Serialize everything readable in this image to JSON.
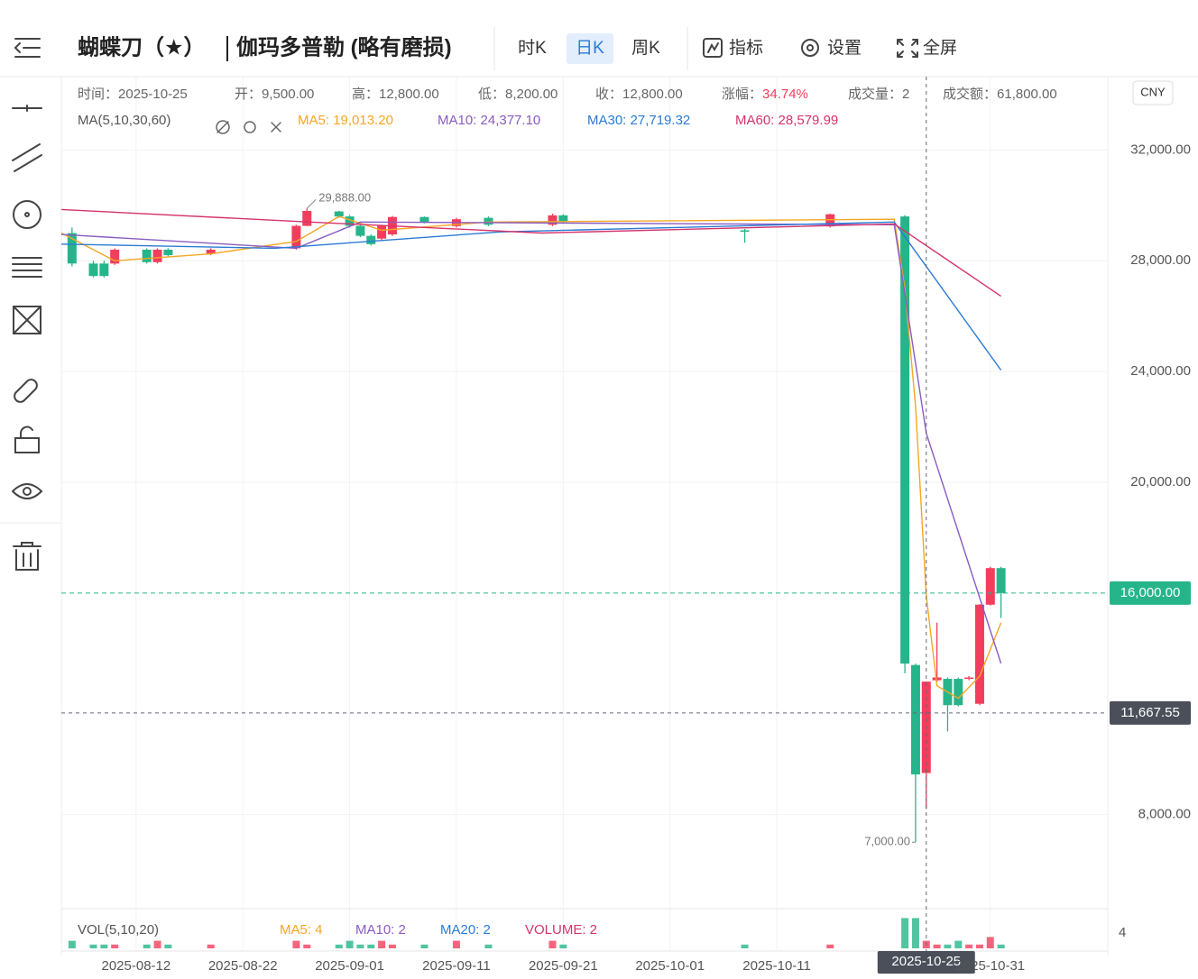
{
  "header": {
    "title": "蝴蝶刀（★）",
    "item_name": "伽玛多普勒 (略有磨损)",
    "period_tabs": [
      "时K",
      "日K",
      "周K"
    ],
    "active_tab": 1,
    "tools": [
      "指标",
      "设置",
      "全屏"
    ]
  },
  "chart_data": {
    "type": "candlestick",
    "currency": "CNY",
    "up_color": "#f23d5c",
    "down_color": "#26b58a",
    "info_bar": [
      {
        "label": "时间：",
        "value": "2025-10-25"
      },
      {
        "label": "开：",
        "value": "9,500.00"
      },
      {
        "label": "高：",
        "value": "12,800.00"
      },
      {
        "label": "低：",
        "value": "8,200.00"
      },
      {
        "label": "收：",
        "value": "12,800.00"
      },
      {
        "label": "涨幅：",
        "value": "34.74%"
      },
      {
        "label": "成交量：",
        "value": "2"
      },
      {
        "label": "成交额：",
        "value": "61,800.00"
      }
    ],
    "ma_title": "MA(5,10,30,60)",
    "xlim": [
      "2025-08-05",
      "2025-11-11"
    ],
    "xticks": [
      "2025-08-12",
      "2025-08-22",
      "2025-09-01",
      "2025-09-11",
      "2025-09-21",
      "2025-10-01",
      "2025-10-11",
      "2025-10-31"
    ],
    "ylim": [
      4600,
      34650
    ],
    "yticks": [
      {
        "value": 8000,
        "label": "8,000.00"
      },
      {
        "value": 20000,
        "label": "20,000.00"
      },
      {
        "value": 24000,
        "label": "24,000.00"
      },
      {
        "value": 28000,
        "label": "28,000.00"
      },
      {
        "value": 32000,
        "label": "32,000.00"
      }
    ],
    "grid": true,
    "x": [
      "2025-08-06",
      "2025-08-08",
      "2025-08-09",
      "2025-08-10",
      "2025-08-13",
      "2025-08-14",
      "2025-08-15",
      "2025-08-19",
      "2025-08-27",
      "2025-08-28",
      "2025-08-31",
      "2025-09-01",
      "2025-09-02",
      "2025-09-03",
      "2025-09-04",
      "2025-09-05",
      "2025-09-08",
      "2025-09-11",
      "2025-09-14",
      "2025-09-20",
      "2025-09-21",
      "2025-10-08",
      "2025-10-16",
      "2025-10-23",
      "2025-10-24",
      "2025-10-25",
      "2025-10-26",
      "2025-10-27",
      "2025-10-28",
      "2025-10-29",
      "2025-10-30",
      "2025-10-31",
      "2025-11-01"
    ],
    "open": [
      29000,
      27900,
      27900,
      27900,
      28400,
      27950,
      28400,
      28250,
      28450,
      29260,
      29780,
      29600,
      29260,
      28900,
      28800,
      28950,
      29580,
      29250,
      29550,
      29300,
      29640,
      29100,
      29240,
      29600,
      13400,
      9500,
      12850,
      12900,
      12900,
      12900,
      12000,
      15580,
      16900
    ],
    "high": [
      29200,
      28000,
      28000,
      28450,
      28450,
      28450,
      28450,
      28450,
      29300,
      29888,
      29800,
      29650,
      29300,
      28950,
      29300,
      29620,
      29600,
      29550,
      29600,
      29700,
      29680,
      29150,
      29700,
      29650,
      13450,
      12800,
      14930,
      12950,
      12950,
      13000,
      15600,
      16950,
      16950
    ],
    "low": [
      27800,
      27400,
      27400,
      27850,
      27900,
      27900,
      28150,
      28200,
      28400,
      29250,
      29550,
      29200,
      28850,
      28550,
      28750,
      28900,
      29350,
      29200,
      29250,
      29250,
      29350,
      28650,
      29200,
      13100,
      7000,
      8200,
      12800,
      11000,
      11900,
      12850,
      11950,
      15550,
      15100
    ],
    "close": [
      27900,
      27450,
      27450,
      28400,
      27950,
      28400,
      28200,
      28400,
      29260,
      29800,
      29600,
      29260,
      28900,
      28600,
      29260,
      29580,
      29400,
      29500,
      29300,
      29640,
      29400,
      29050,
      29680,
      13450,
      9450,
      12800,
      12950,
      11950,
      11950,
      12950,
      15580,
      16900,
      16000
    ],
    "volume": [
      2,
      1,
      1,
      1,
      1,
      2,
      1,
      1,
      2,
      1,
      1,
      2,
      1,
      1,
      2,
      1,
      1,
      2,
      1,
      2,
      1,
      1,
      1,
      8,
      8,
      2,
      1,
      1,
      2,
      1,
      1,
      3,
      1
    ],
    "series": [
      {
        "name": "MA5: 19,013.20",
        "color": "#f5a623",
        "x": [
          "2025-08-05",
          "2025-08-10",
          "2025-08-19",
          "2025-08-27",
          "2025-08-31",
          "2025-09-04",
          "2025-09-14",
          "2025-10-22",
          "2025-10-23",
          "2025-10-24",
          "2025-10-25",
          "2025-10-26",
          "2025-10-28",
          "2025-10-30",
          "2025-11-01"
        ],
        "values": [
          29000,
          28000,
          28250,
          28700,
          29600,
          29100,
          29400,
          29500,
          26980,
          22750,
          15900,
          12650,
          12200,
          13000,
          14930
        ]
      },
      {
        "name": "MA10: 24,377.10",
        "color": "#8a5cc2",
        "x": [
          "2025-08-05",
          "2025-08-27",
          "2025-09-02",
          "2025-10-22",
          "2025-10-25",
          "2025-11-01"
        ],
        "values": [
          28950,
          28450,
          29400,
          29300,
          21770,
          13460
        ]
      },
      {
        "name": "MA30: 27,719.32",
        "color": "#2a7bd4",
        "x": [
          "2025-08-05",
          "2025-08-25",
          "2025-09-15",
          "2025-10-22",
          "2025-11-01"
        ],
        "values": [
          28600,
          28450,
          29040,
          29400,
          24050
        ]
      },
      {
        "name": "MA60: 28,579.99",
        "color": "#d6336c",
        "x": [
          "2025-08-05",
          "2025-08-27",
          "2025-09-19",
          "2025-10-22",
          "2025-11-01"
        ],
        "values": [
          29850,
          29420,
          29000,
          29330,
          26720
        ]
      }
    ],
    "annotations": [
      {
        "x": "2025-08-28",
        "value": 29888,
        "label": "29,888.00"
      },
      {
        "x": "2025-10-24",
        "value": 7000,
        "label": "7,000.00"
      }
    ],
    "last_price": {
      "value": 16000,
      "label": "16,000.00"
    },
    "crosshair": {
      "date": "2025-10-25",
      "price": {
        "value": 11667.55,
        "label": "11,667.55"
      }
    },
    "volume_panel": {
      "title": "VOL(5,10,20)",
      "ylim": [
        0,
        10
      ],
      "yticks": [
        4
      ],
      "legend": [
        {
          "text": "MA5: 4",
          "color": "#f5a623"
        },
        {
          "text": "MA10: 2",
          "color": "#8a5cc2"
        },
        {
          "text": "MA20: 2",
          "color": "#2a7bd4"
        },
        {
          "text": "VOLUME: 2",
          "color": "#d6336c"
        }
      ]
    }
  }
}
